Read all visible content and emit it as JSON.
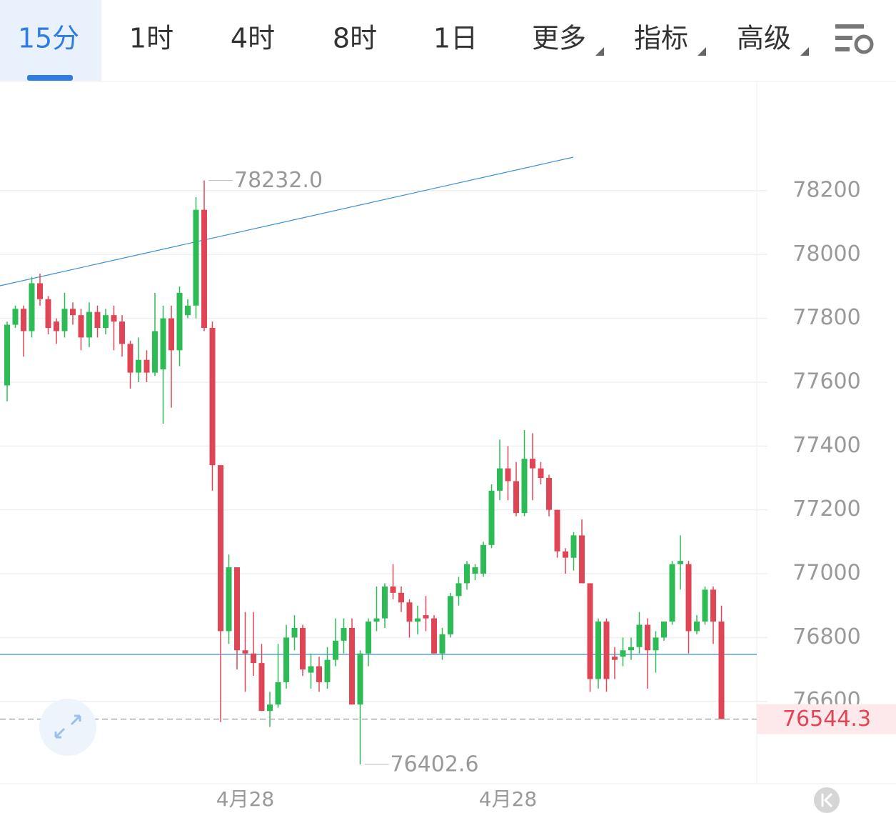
{
  "tabs": [
    "15分",
    "1时",
    "4时",
    "8时",
    "1日",
    "更多",
    "指标",
    "高级"
  ],
  "active_tab": 0,
  "chart_data": {
    "type": "candlestick",
    "categories": [
      null,
      null,
      null,
      null,
      null,
      null,
      null,
      null,
      null,
      null,
      null,
      null,
      null,
      null,
      null,
      null,
      null,
      null,
      null,
      null,
      null,
      null,
      null,
      null,
      null,
      null,
      null,
      null,
      null,
      "4月28",
      null,
      null,
      null,
      null,
      null,
      null,
      null,
      null,
      null,
      null,
      null,
      null,
      null,
      null,
      null,
      null,
      null,
      null,
      null,
      null,
      null,
      null,
      null,
      null,
      null,
      null,
      null,
      null,
      null,
      null,
      null,
      "4月28",
      null,
      null,
      null,
      null,
      null,
      null,
      null,
      null,
      null,
      null,
      null,
      null,
      null,
      null,
      null,
      null,
      null,
      null,
      null,
      null,
      null,
      null,
      null,
      null,
      null,
      null
    ],
    "open": [
      77590,
      77780,
      77830,
      77760,
      77910,
      77860,
      77790,
      77760,
      77830,
      77810,
      77740,
      77820,
      77770,
      77810,
      77790,
      77720,
      77630,
      77670,
      77630,
      77640,
      77800,
      77700,
      77810,
      77840,
      78140,
      77770,
      77340,
      76820,
      77020,
      76760,
      76750,
      76720,
      76570,
      76590,
      76660,
      76800,
      76830,
      76690,
      76710,
      76660,
      76730,
      76790,
      76830,
      76590,
      76750,
      76850,
      76860,
      76960,
      76940,
      76910,
      76850,
      76870,
      76860,
      76750,
      76810,
      76930,
      76970,
      77000,
      77000,
      77090,
      77260,
      77330,
      77290,
      77190,
      77360,
      77330,
      77300,
      77200,
      77070,
      77050,
      77120,
      76970,
      76670,
      76850,
      76740,
      76740,
      76760,
      76770,
      76840,
      76760,
      76800,
      76850,
      77030,
      77030,
      76820,
      76850,
      76950,
      76850
    ],
    "high": [
      77790,
      77840,
      77840,
      77930,
      77940,
      77870,
      77800,
      77880,
      77850,
      77830,
      77850,
      77840,
      77830,
      77840,
      77810,
      77730,
      77740,
      77700,
      77880,
      77840,
      77840,
      77900,
      77860,
      78180,
      78232,
      77790,
      77340,
      77060,
      77020,
      76880,
      76880,
      76780,
      76630,
      76780,
      76840,
      76870,
      76840,
      76750,
      76740,
      76770,
      76860,
      76860,
      76860,
      76760,
      76860,
      76960,
      76970,
      77030,
      76960,
      76920,
      76900,
      76930,
      76870,
      76830,
      76940,
      76990,
      77040,
      77030,
      77100,
      77280,
      77420,
      77400,
      77350,
      77450,
      77440,
      77350,
      77310,
      77200,
      77080,
      77130,
      77170,
      76970,
      76860,
      76860,
      76770,
      76800,
      76800,
      76880,
      76860,
      76820,
      76850,
      77040,
      77120,
      77040,
      76870,
      76960,
      76960,
      76900
    ],
    "low": [
      77540,
      77770,
      77680,
      77740,
      77840,
      77750,
      77720,
      77740,
      77780,
      77700,
      77710,
      77740,
      77750,
      77700,
      77680,
      77580,
      77600,
      77600,
      77620,
      77470,
      77520,
      77650,
      77800,
      77800,
      77760,
      77260,
      76535,
      76780,
      76700,
      76630,
      76680,
      76570,
      76520,
      76580,
      76640,
      76760,
      76680,
      76640,
      76630,
      76640,
      76710,
      76750,
      76590,
      76402.6,
      76710,
      76820,
      76830,
      76920,
      76880,
      76800,
      76810,
      76820,
      76750,
      76730,
      76800,
      76900,
      76950,
      76980,
      76990,
      77080,
      77230,
      77230,
      77180,
      77180,
      77230,
      77280,
      77180,
      77050,
      77000,
      77010,
      76970,
      76630,
      76640,
      76630,
      76670,
      76710,
      76730,
      76750,
      76640,
      76690,
      76790,
      76840,
      76950,
      76750,
      76810,
      76840,
      76780,
      76544.3
    ],
    "close": [
      77780,
      77830,
      77760,
      77910,
      77860,
      77770,
      77760,
      77830,
      77810,
      77740,
      77820,
      77770,
      77810,
      77790,
      77720,
      77630,
      77670,
      77630,
      77760,
      77800,
      77700,
      77880,
      77840,
      78140,
      77770,
      77340,
      76820,
      77020,
      76760,
      76750,
      76720,
      76570,
      76590,
      76660,
      76800,
      76830,
      76700,
      76710,
      76660,
      76730,
      76790,
      76830,
      76590,
      76750,
      76850,
      76860,
      76960,
      76940,
      76910,
      76850,
      76860,
      76860,
      76750,
      76810,
      76930,
      76970,
      77030,
      77020,
      77090,
      77260,
      77330,
      77290,
      77190,
      77360,
      77330,
      77300,
      77200,
      77070,
      77050,
      77120,
      76970,
      76670,
      76850,
      76670,
      76730,
      76760,
      76770,
      76840,
      76760,
      76800,
      76850,
      77030,
      77040,
      76820,
      76850,
      76950,
      76850,
      76544.3
    ],
    "up_color": "#2dbb55",
    "down_color": "#e04556",
    "ylim": [
      76342,
      78540
    ],
    "yticks": [
      76600,
      76800,
      77000,
      77200,
      77400,
      77600,
      77800,
      78000,
      78200
    ],
    "grid": true,
    "annotations": [
      {
        "value": 78232,
        "label": "78232.0"
      },
      {
        "value": 76402.6,
        "label": "76402.6"
      }
    ],
    "last_price": {
      "value": 76544.3,
      "label": "76544.3"
    }
  }
}
